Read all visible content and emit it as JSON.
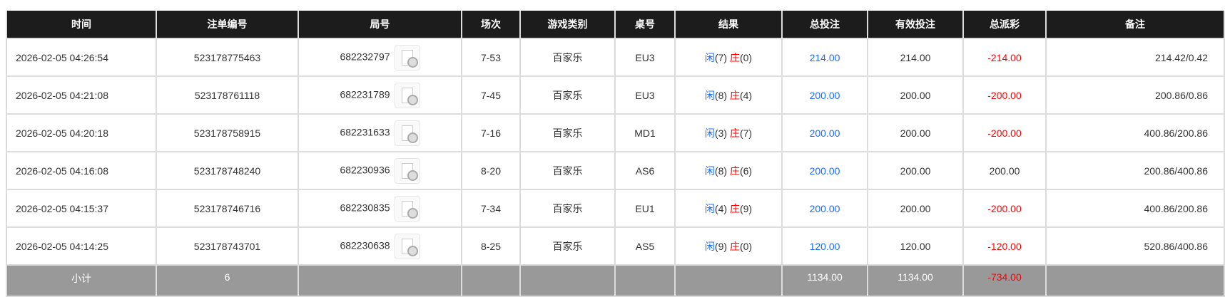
{
  "headers": [
    "时间",
    "注单编号",
    "局号",
    "场次",
    "游戏类别",
    "桌号",
    "结果",
    "总投注",
    "有效投注",
    "总派彩",
    "备注"
  ],
  "rows": [
    {
      "time": "2026-02-05 04:26:54",
      "bet_id": "523178775463",
      "round": "682232797",
      "session": "7-53",
      "game": "百家乐",
      "table": "EU3",
      "player_label": "闲",
      "player": "(7)",
      "banker_label": "庄",
      "banker": "(0)",
      "total": "214.00",
      "valid": "214.00",
      "payout": "-214.00",
      "note": "214.42/0.42"
    },
    {
      "time": "2026-02-05 04:21:08",
      "bet_id": "523178761118",
      "round": "682231789",
      "session": "7-45",
      "game": "百家乐",
      "table": "EU3",
      "player_label": "闲",
      "player": "(8)",
      "banker_label": "庄",
      "banker": "(4)",
      "total": "200.00",
      "valid": "200.00",
      "payout": "-200.00",
      "note": "200.86/0.86"
    },
    {
      "time": "2026-02-05 04:20:18",
      "bet_id": "523178758915",
      "round": "682231633",
      "session": "7-16",
      "game": "百家乐",
      "table": "MD1",
      "player_label": "闲",
      "player": "(3)",
      "banker_label": "庄",
      "banker": "(7)",
      "total": "200.00",
      "valid": "200.00",
      "payout": "-200.00",
      "note": "400.86/200.86"
    },
    {
      "time": "2026-02-05 04:16:08",
      "bet_id": "523178748240",
      "round": "682230936",
      "session": "8-20",
      "game": "百家乐",
      "table": "AS6",
      "player_label": "闲",
      "player": "(8)",
      "banker_label": "庄",
      "banker": "(6)",
      "total": "200.00",
      "valid": "200.00",
      "payout": "200.00",
      "note": "200.86/400.86"
    },
    {
      "time": "2026-02-05 04:15:37",
      "bet_id": "523178746716",
      "round": "682230835",
      "session": "7-34",
      "game": "百家乐",
      "table": "EU1",
      "player_label": "闲",
      "player": "(4)",
      "banker_label": "庄",
      "banker": "(9)",
      "total": "200.00",
      "valid": "200.00",
      "payout": "-200.00",
      "note": "400.86/200.86"
    },
    {
      "time": "2026-02-05 04:14:25",
      "bet_id": "523178743701",
      "round": "682230638",
      "session": "8-25",
      "game": "百家乐",
      "table": "AS5",
      "player_label": "闲",
      "player": "(9)",
      "banker_label": "庄",
      "banker": "(0)",
      "total": "120.00",
      "valid": "120.00",
      "payout": "-120.00",
      "note": "520.86/400.86"
    }
  ],
  "summary": {
    "label": "小计",
    "count": "6",
    "total": "1134.00",
    "valid": "1134.00",
    "payout": "-734.00"
  },
  "colors": {
    "header": "#1c1c1c",
    "positive_link": "#1a6cff",
    "negative": "#ff0000",
    "summary_bg": "#999999"
  }
}
